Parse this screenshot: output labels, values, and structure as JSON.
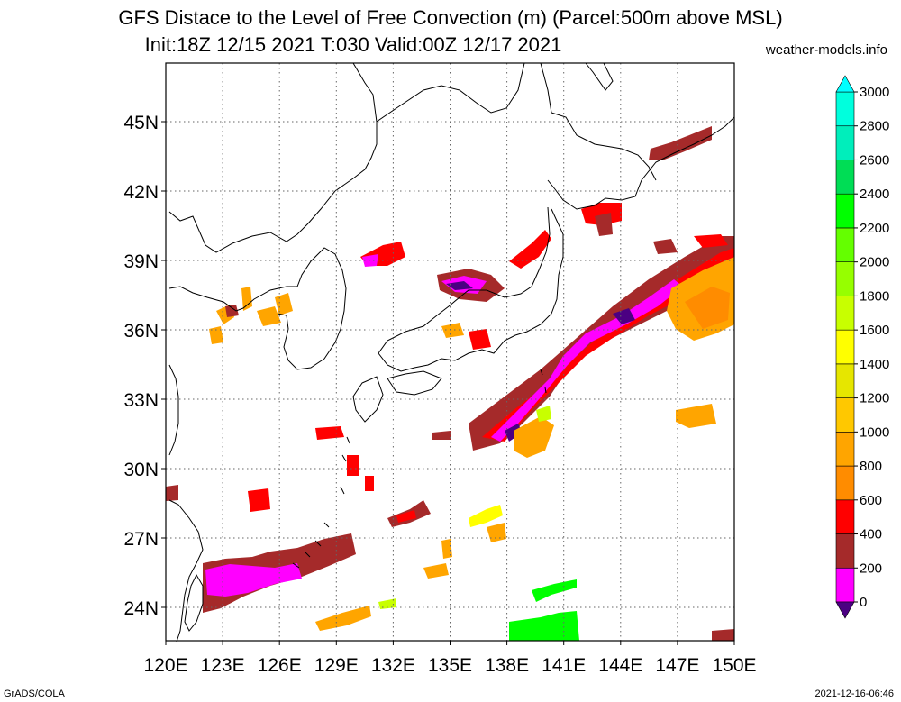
{
  "header": {
    "title_line1": "GFS Distace to the Level of Free Convection (m) (Parcel:500m above MSL)",
    "title_line2": "Init:18Z 12/15 2021 T:030 Valid:00Z 12/17 2021",
    "credit": "weather-models.info"
  },
  "footer": {
    "left": "GrADS/COLA",
    "right": "2021-12-16-06:46"
  },
  "map": {
    "x_ticks": [
      "120E",
      "123E",
      "126E",
      "129E",
      "132E",
      "135E",
      "138E",
      "141E",
      "144E",
      "147E",
      "150E"
    ],
    "y_ticks": [
      "45N",
      "42N",
      "39N",
      "36N",
      "33N",
      "30N",
      "27N",
      "24N"
    ],
    "colors": {
      "c0": "#4b0082",
      "c200": "#ff00ff",
      "c400": "#a52a2a",
      "c600": "#ff0000",
      "c800": "#ff8c00",
      "c1000": "#ffa500",
      "c1200": "#ffc800",
      "c1400": "#ffff00",
      "c1600": "#c8ff00",
      "c2200": "#00ff00"
    }
  },
  "colorbar": {
    "labels": [
      "0",
      "200",
      "400",
      "600",
      "800",
      "1000",
      "1200",
      "1400",
      "1600",
      "1800",
      "2000",
      "2200",
      "2400",
      "2600",
      "2800",
      "3000"
    ],
    "colors": [
      "#4b0082",
      "#ff00ff",
      "#a52a2a",
      "#ff0000",
      "#ff8c00",
      "#ffa500",
      "#ffc800",
      "#e6e600",
      "#ffff00",
      "#c8ff00",
      "#96ff00",
      "#64ff00",
      "#00ff00",
      "#00dd55",
      "#00eebb",
      "#00ffdd",
      "#00ffff"
    ]
  }
}
